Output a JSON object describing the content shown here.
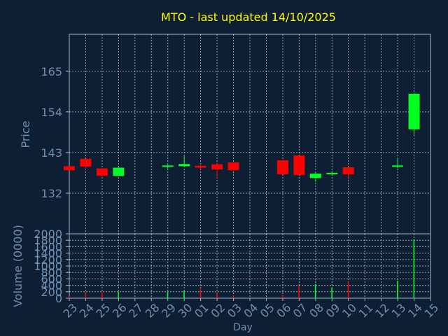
{
  "chart_data": [
    {
      "type": "candlestick",
      "title": "MTO - last updated 14/10/2025",
      "ylabel": "Price",
      "ylim": [
        121,
        175
      ],
      "yticks": [
        132,
        143,
        154,
        165
      ],
      "grid": true,
      "up_color": "#00ff22",
      "down_color": "#ff0000",
      "categories": [
        "23",
        "24",
        "25",
        "26",
        "27",
        "28",
        "29",
        "30",
        "01",
        "02",
        "03",
        "04",
        "05",
        "06",
        "07",
        "08",
        "09",
        "10",
        "11",
        "12",
        "13",
        "14",
        "15"
      ],
      "candles": [
        {
          "x": 0,
          "open": 139.3,
          "close": 138.2,
          "high": 139.3,
          "low": 138.2
        },
        {
          "x": 1,
          "open": 141.3,
          "close": 139.2,
          "high": 141.3,
          "low": 138.3
        },
        {
          "x": 2,
          "open": 138.7,
          "close": 136.7,
          "high": 138.7,
          "low": 136.5
        },
        {
          "x": 3,
          "open": 136.7,
          "close": 138.9,
          "high": 139.3,
          "low": 136.7
        },
        {
          "x": 6,
          "open": 139.2,
          "close": 139.5,
          "high": 139.7,
          "low": 138.6
        },
        {
          "x": 7,
          "open": 139.3,
          "close": 139.9,
          "high": 142.0,
          "low": 139.2
        },
        {
          "x": 8,
          "open": 139.4,
          "close": 138.9,
          "high": 139.6,
          "low": 138.5
        },
        {
          "x": 9,
          "open": 139.8,
          "close": 138.4,
          "high": 140.0,
          "low": 135.9
        },
        {
          "x": 10,
          "open": 140.3,
          "close": 138.2,
          "high": 140.3,
          "low": 138.2
        },
        {
          "x": 13,
          "open": 140.9,
          "close": 137.1,
          "high": 140.9,
          "low": 137.1
        },
        {
          "x": 14,
          "open": 142.2,
          "close": 136.9,
          "high": 142.2,
          "low": 136.9
        },
        {
          "x": 15,
          "open": 136.1,
          "close": 137.3,
          "high": 137.5,
          "low": 135.1
        },
        {
          "x": 16,
          "open": 137.3,
          "close": 137.5,
          "high": 138.0,
          "low": 136.9
        },
        {
          "x": 17,
          "open": 139.0,
          "close": 137.1,
          "high": 139.0,
          "low": 135.5
        },
        {
          "x": 20,
          "open": 139.2,
          "close": 139.5,
          "high": 141.3,
          "low": 138.7
        },
        {
          "x": 21,
          "open": 149.3,
          "close": 158.9,
          "high": 158.9,
          "low": 147.6
        }
      ]
    },
    {
      "type": "bar",
      "xlabel": "Day",
      "ylabel": "Volume (0000)",
      "ylim": [
        0,
        2000
      ],
      "yticks": [
        0,
        200,
        400,
        600,
        800,
        1000,
        1200,
        1400,
        1600,
        1800,
        2000
      ],
      "categories": [
        "23",
        "24",
        "25",
        "26",
        "27",
        "28",
        "29",
        "30",
        "01",
        "02",
        "03",
        "04",
        "05",
        "06",
        "07",
        "08",
        "09",
        "10",
        "11",
        "12",
        "13",
        "14",
        "15"
      ],
      "bars": [
        {
          "x": 0,
          "value": 60,
          "color": "#ff0000"
        },
        {
          "x": 1,
          "value": 160,
          "color": "#ff0000"
        },
        {
          "x": 2,
          "value": 180,
          "color": "#ff0000"
        },
        {
          "x": 3,
          "value": 200,
          "color": "#00ff22"
        },
        {
          "x": 6,
          "value": 190,
          "color": "#00ff22"
        },
        {
          "x": 7,
          "value": 230,
          "color": "#00ff22"
        },
        {
          "x": 8,
          "value": 290,
          "color": "#ff0000"
        },
        {
          "x": 9,
          "value": 160,
          "color": "#ff0000"
        },
        {
          "x": 10,
          "value": 90,
          "color": "#ff0000"
        },
        {
          "x": 13,
          "value": 100,
          "color": "#ff0000"
        },
        {
          "x": 14,
          "value": 380,
          "color": "#ff0000"
        },
        {
          "x": 15,
          "value": 440,
          "color": "#00ff22"
        },
        {
          "x": 16,
          "value": 330,
          "color": "#00ff22"
        },
        {
          "x": 17,
          "value": 510,
          "color": "#ff0000"
        },
        {
          "x": 20,
          "value": 540,
          "color": "#00ff22"
        },
        {
          "x": 21,
          "value": 1830,
          "color": "#00ff22"
        }
      ]
    }
  ],
  "colors": {
    "background": "#0f1f33",
    "title": "#ffff00",
    "text": "#6f8fb0",
    "axis": "#9fb8d6",
    "grid": "#c8d4e2"
  }
}
